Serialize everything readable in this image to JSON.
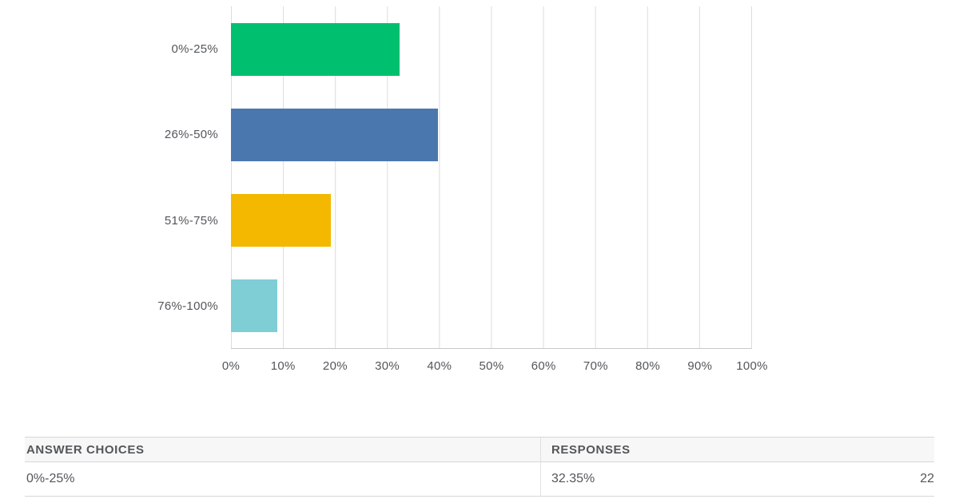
{
  "chart_data": {
    "type": "bar",
    "orientation": "horizontal",
    "title": "",
    "xlabel": "",
    "ylabel": "",
    "xlim": [
      0,
      100
    ],
    "grid": true,
    "categories": [
      "0%-25%",
      "26%-50%",
      "51%-75%",
      "76%-100%"
    ],
    "values": [
      32.35,
      39.71,
      19.12,
      8.82
    ],
    "colors": [
      "#00bf6f",
      "#4b77af",
      "#f5b800",
      "#7fced6"
    ],
    "x_ticks": [
      "0%",
      "10%",
      "20%",
      "30%",
      "40%",
      "50%",
      "60%",
      "70%",
      "80%",
      "90%",
      "100%"
    ]
  },
  "table": {
    "headers": [
      "ANSWER CHOICES",
      "RESPONSES"
    ],
    "rows": [
      {
        "choice": "0%-25%",
        "percent": "32.35%",
        "count": "22"
      }
    ]
  }
}
